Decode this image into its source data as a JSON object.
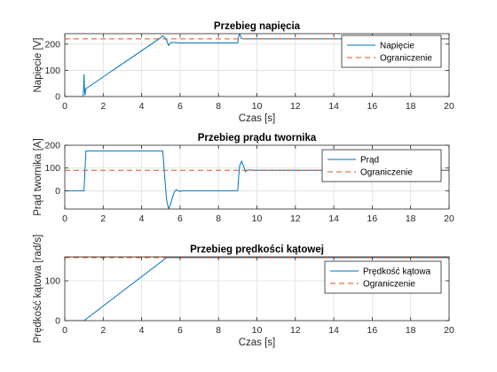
{
  "figure": {
    "background": "#ffffff"
  },
  "chart_data": [
    {
      "type": "line",
      "title": "Przebieg napięcia",
      "xlabel": "Czas [s]",
      "ylabel": "Napięcie [V]",
      "xlim": [
        0,
        20
      ],
      "ylim": [
        0,
        240
      ],
      "xticks": [
        0,
        2,
        4,
        6,
        8,
        10,
        12,
        14,
        16,
        18,
        20
      ],
      "yticks": [
        0,
        100,
        200
      ],
      "grid": true,
      "legend_position": "top-right",
      "series": [
        {
          "name": "Napięcie",
          "color": "#0072BD",
          "style": "solid",
          "x": [
            0,
            0.95,
            0.98,
            1.0,
            1.02,
            1.05,
            1.1,
            5.0,
            5.1,
            5.2,
            5.3,
            5.4,
            5.5,
            5.6,
            5.7,
            5.8,
            5.9,
            6.0,
            6.1,
            6.3,
            9.0,
            9.05,
            9.1,
            9.15,
            9.2,
            9.3,
            9.4,
            9.5,
            20
          ],
          "y": [
            0,
            0,
            30,
            85,
            40,
            5,
            30,
            225,
            232,
            225,
            215,
            195,
            205,
            207,
            206,
            206,
            205,
            205,
            205,
            205,
            205,
            230,
            240,
            230,
            222,
            220,
            220,
            220,
            220
          ]
        },
        {
          "name": "Ograniczenie",
          "color": "#D95319",
          "style": "dashed",
          "x": [
            0,
            20
          ],
          "y": [
            220,
            220
          ]
        }
      ]
    },
    {
      "type": "line",
      "title": "Przebieg prądu twornika",
      "xlabel": "",
      "ylabel": "Prąd twornika [A]",
      "xlim": [
        0,
        20
      ],
      "ylim": [
        -80,
        200
      ],
      "xticks": [
        0,
        2,
        4,
        6,
        8,
        10,
        12,
        14,
        16,
        18,
        20
      ],
      "yticks": [
        0,
        100,
        200
      ],
      "grid": true,
      "legend_position": "top-right",
      "series": [
        {
          "name": "Prąd",
          "color": "#0072BD",
          "style": "solid",
          "x": [
            0,
            1.0,
            1.1,
            5.1,
            5.2,
            5.3,
            5.4,
            5.5,
            5.6,
            5.7,
            5.8,
            5.9,
            6.0,
            6.1,
            6.3,
            6.6,
            9.0,
            9.05,
            9.1,
            9.2,
            9.3,
            9.4,
            9.5,
            9.6,
            9.8,
            20
          ],
          "y": [
            0,
            0,
            175,
            175,
            60,
            -40,
            -80,
            -60,
            -30,
            -5,
            5,
            0,
            -3,
            0,
            0,
            0,
            0,
            60,
            110,
            130,
            110,
            85,
            90,
            92,
            90,
            90
          ]
        },
        {
          "name": "Ograniczenie",
          "color": "#D95319",
          "style": "dashed",
          "x": [
            0,
            20
          ],
          "y": [
            90,
            90
          ]
        }
      ]
    },
    {
      "type": "line",
      "title": "Przebieg prędkości kątowej",
      "xlabel": "Czas [s]",
      "ylabel": "Prędkość kątowa [rad/s]",
      "xlim": [
        0,
        20
      ],
      "ylim": [
        0,
        160
      ],
      "xticks": [
        0,
        2,
        4,
        6,
        8,
        10,
        12,
        14,
        16,
        18,
        20
      ],
      "yticks": [
        0,
        100
      ],
      "grid": true,
      "legend_position": "top-right",
      "series": [
        {
          "name": "Prędkość kątowa",
          "color": "#0072BD",
          "style": "solid",
          "x": [
            0,
            1.0,
            5.3,
            20
          ],
          "y": [
            0,
            0,
            158,
            158
          ]
        },
        {
          "name": "Ograniczenie",
          "color": "#D95319",
          "style": "dashed",
          "x": [
            0,
            20
          ],
          "y": [
            158,
            158
          ]
        }
      ]
    }
  ]
}
